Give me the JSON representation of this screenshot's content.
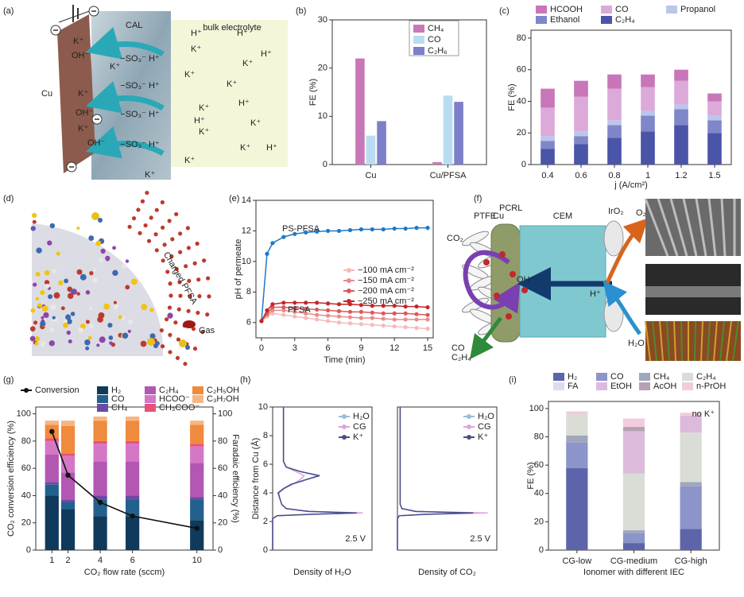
{
  "chart_data": [
    {
      "type": "bar",
      "panel": "(b)",
      "ylabel": "FE (%)",
      "categories": [
        "Cu",
        "Cu/PFSA"
      ],
      "ylim": [
        0,
        30
      ],
      "yticks": [
        0,
        10,
        20,
        30
      ],
      "series": [
        {
          "name": "CH₄",
          "color": "#c878b8",
          "values": [
            22,
            0.5
          ]
        },
        {
          "name": "CO",
          "color": "#b9dcf2",
          "values": [
            6,
            14.3
          ]
        },
        {
          "name": "C₂H₆",
          "color": "#7b80c8",
          "values": [
            9,
            13
          ]
        }
      ]
    },
    {
      "type": "stacked",
      "panel": "(c)",
      "ylabel": "FE (%)",
      "xlabel": "j (A/cm²)",
      "categories": [
        "0.4",
        "0.6",
        "0.8",
        "1",
        "1.2",
        "1.5"
      ],
      "ylim": [
        0,
        85
      ],
      "yticks": [
        0,
        20,
        40,
        60,
        80
      ],
      "series": [
        {
          "name": "C₂H₄",
          "color": "#4a55a8",
          "values": [
            10,
            13,
            17,
            21,
            25,
            20
          ]
        },
        {
          "name": "Ethanol",
          "color": "#7f87c9",
          "values": [
            5,
            5,
            8,
            10,
            10,
            8
          ]
        },
        {
          "name": "Propanol",
          "color": "#bcc6ec",
          "values": [
            3,
            3,
            3,
            3,
            3,
            3
          ]
        },
        {
          "name": "CO",
          "color": "#dcaad8",
          "values": [
            18,
            22,
            20,
            15,
            15,
            9
          ]
        },
        {
          "name": "HCOOH",
          "color": "#c876b9",
          "values": [
            12,
            10,
            9,
            8,
            7,
            5
          ]
        }
      ]
    },
    {
      "type": "line",
      "panel": "(e)",
      "ylabel": "pH of permeate",
      "xlabel": "Time (min)",
      "x": [
        0,
        0.5,
        1,
        2,
        3,
        4,
        5,
        6,
        7,
        8,
        9,
        10,
        11,
        12,
        13,
        14,
        15
      ],
      "xlim": [
        -0.5,
        15.5
      ],
      "xticks": [
        0,
        3,
        6,
        9,
        12,
        15
      ],
      "ylim": [
        5,
        14
      ],
      "yticks": [
        6,
        8,
        10,
        12,
        14
      ],
      "annotations": [
        "PFSA"
      ],
      "series": [
        {
          "name": "PS-PFSA",
          "color": "#1f78c8",
          "values": [
            6.1,
            10.5,
            11.2,
            11.6,
            11.8,
            11.9,
            11.95,
            12.0,
            12.0,
            12.05,
            12.1,
            12.1,
            12.1,
            12.15,
            12.15,
            12.2,
            12.2
          ]
        },
        {
          "name": "−100 mA cm⁻²",
          "color": "#f4baba",
          "values": [
            6.1,
            6.4,
            6.6,
            6.5,
            6.4,
            6.3,
            6.2,
            6.1,
            6.0,
            5.95,
            5.9,
            5.85,
            5.8,
            5.75,
            5.7,
            5.65,
            5.6
          ]
        },
        {
          "name": "−150 mA cm⁻²",
          "color": "#e88c8c",
          "values": [
            6.1,
            6.5,
            6.8,
            6.8,
            6.7,
            6.6,
            6.5,
            6.45,
            6.4,
            6.35,
            6.3,
            6.3,
            6.25,
            6.2,
            6.2,
            6.2,
            6.2
          ]
        },
        {
          "name": "−200 mA cm⁻²",
          "color": "#d85a5a",
          "values": [
            6.1,
            6.6,
            7.0,
            7.0,
            6.95,
            6.9,
            6.85,
            6.8,
            6.75,
            6.7,
            6.7,
            6.65,
            6.6,
            6.6,
            6.6,
            6.55,
            6.5
          ]
        },
        {
          "name": "−250 mA cm⁻²",
          "color": "#c0282c",
          "values": [
            6.1,
            6.8,
            7.2,
            7.3,
            7.3,
            7.3,
            7.3,
            7.25,
            7.2,
            7.2,
            7.15,
            7.1,
            7.1,
            7.1,
            7.05,
            7.05,
            7.0
          ]
        }
      ]
    },
    {
      "type": "barline",
      "panel": "(g)",
      "ylabel": "CO₂ conversion efficiency (%)",
      "y2label": "Faradaic efficiency (%)",
      "xlabel": "CO₂ flow rate (sccm)",
      "x": [
        1,
        2,
        4,
        6,
        10
      ],
      "xlim": [
        0,
        11
      ],
      "xticks": [
        1,
        2,
        4,
        6,
        10
      ],
      "ylim": [
        0,
        105
      ],
      "yticks": [
        0,
        20,
        40,
        60,
        80,
        100
      ],
      "y2lim": [
        0,
        105
      ],
      "y2ticks": [
        0,
        20,
        40,
        60,
        80,
        100
      ],
      "series": [
        {
          "name": "Conversion",
          "color": "#111111",
          "values": [
            87,
            55,
            35,
            25,
            16
          ]
        },
        {
          "name": "H₂",
          "color": "#0f3a5c",
          "axis": "y2",
          "values": [
            40,
            30,
            25,
            25,
            22
          ]
        },
        {
          "name": "CO",
          "color": "#22608e",
          "axis": "y2",
          "values": [
            8,
            5,
            12,
            12,
            15
          ]
        },
        {
          "name": "CH₄",
          "color": "#6a4aa2",
          "axis": "y2",
          "values": [
            2,
            2,
            3,
            3,
            2
          ]
        },
        {
          "name": "C₂H₄",
          "color": "#b257b2",
          "axis": "y2",
          "values": [
            20,
            20,
            25,
            25,
            25
          ]
        },
        {
          "name": "HCOO⁻",
          "color": "#d478c6",
          "axis": "y2",
          "values": [
            10,
            12,
            13,
            13,
            12
          ]
        },
        {
          "name": "CH₃COO⁻",
          "color": "#e8507c",
          "axis": "y2",
          "values": [
            2,
            2,
            2,
            2,
            2
          ]
        },
        {
          "name": "C₂H₅OH",
          "color": "#f08a3c",
          "axis": "y2",
          "values": [
            10,
            20,
            15,
            15,
            14
          ]
        },
        {
          "name": "C₃H₇OH",
          "color": "#f6b684",
          "axis": "y2",
          "values": [
            3,
            4,
            3,
            3,
            3
          ]
        }
      ]
    },
    {
      "type": "profile",
      "panel": "(h)",
      "ylabel": "Distance from Cu (Å)",
      "xlabel": "Density of H₂O",
      "annotations": [
        "2.5 V"
      ],
      "ylim": [
        0,
        10
      ],
      "yticks": [
        0,
        2,
        4,
        6,
        8,
        10
      ],
      "xlim": [
        0,
        1.1
      ],
      "y": [
        0,
        2.2,
        2.4,
        2.5,
        2.6,
        2.7,
        2.9,
        3.2,
        3.6,
        4,
        4.3,
        4.6,
        4.9,
        5.2,
        5.5,
        5.8,
        6.2,
        7,
        8,
        9,
        10
      ],
      "series": [
        {
          "name": "H₂O",
          "color": "#9dbbdc",
          "values": [
            0,
            0,
            0.05,
            0.4,
            0.95,
            0.4,
            0.15,
            0.1,
            0.08,
            0.06,
            0.12,
            0.2,
            0.35,
            0.5,
            0.3,
            0.15,
            0.12,
            0.12,
            0.12,
            0.12,
            0.12
          ]
        },
        {
          "name": "CG",
          "color": "#dca6dc",
          "values": [
            0,
            0,
            0.05,
            0.45,
            1.0,
            0.42,
            0.15,
            0.1,
            0.08,
            0.07,
            0.13,
            0.22,
            0.3,
            0.35,
            0.25,
            0.15,
            0.12,
            0.12,
            0.12,
            0.12,
            0.12
          ]
        },
        {
          "name": "K⁺",
          "color": "#4a4f8c",
          "values": [
            0,
            0,
            0.05,
            0.42,
            0.93,
            0.4,
            0.15,
            0.1,
            0.08,
            0.06,
            0.12,
            0.21,
            0.36,
            0.52,
            0.3,
            0.15,
            0.12,
            0.12,
            0.12,
            0.12,
            0.12
          ]
        }
      ]
    },
    {
      "type": "profile",
      "xlabel": "Density of CO₂",
      "annotations": [
        "2.5 V"
      ],
      "ylim": [
        0,
        10
      ],
      "xlim": [
        0,
        1.1
      ],
      "y": [
        0,
        2.2,
        2.4,
        2.5,
        2.6,
        2.7,
        2.9,
        3.2,
        3.6,
        4,
        4.3,
        4.6,
        4.9,
        5.2,
        5.5,
        5.8,
        6.2,
        7,
        8,
        9,
        10
      ],
      "series": [
        {
          "name": "H₂O",
          "color": "#9dbbdc",
          "values": [
            0,
            0,
            0.02,
            0.3,
            0.85,
            0.2,
            0.05,
            0.03,
            0.03,
            0.03,
            0.03,
            0.03,
            0.03,
            0.03,
            0.03,
            0.03,
            0.03,
            0.03,
            0.03,
            0.03,
            0.03
          ]
        },
        {
          "name": "CG",
          "color": "#dca6dc",
          "values": [
            0,
            0,
            0.02,
            0.35,
            1.0,
            0.22,
            0.05,
            0.03,
            0.03,
            0.03,
            0.03,
            0.03,
            0.03,
            0.03,
            0.03,
            0.03,
            0.03,
            0.03,
            0.03,
            0.03,
            0.03
          ]
        },
        {
          "name": "K⁺",
          "color": "#4a4f8c",
          "values": [
            0,
            0,
            0.02,
            0.3,
            0.84,
            0.2,
            0.05,
            0.03,
            0.03,
            0.03,
            0.03,
            0.03,
            0.03,
            0.03,
            0.03,
            0.03,
            0.03,
            0.03,
            0.03,
            0.03,
            0.03
          ]
        }
      ]
    },
    {
      "type": "stacked",
      "panel": "(i)",
      "ylabel": "FE (%)",
      "xlabel": "Ionomer with different IEC",
      "annotations": [
        "no K⁺"
      ],
      "categories": [
        "CG-low",
        "CG-medium",
        "CG-high"
      ],
      "ylim": [
        0,
        105
      ],
      "yticks": [
        0,
        20,
        40,
        60,
        80,
        100
      ],
      "series": [
        {
          "name": "H₂",
          "color": "#5c65aa",
          "values": [
            58,
            5,
            15
          ]
        },
        {
          "name": "CO",
          "color": "#8c94c9",
          "values": [
            18,
            7,
            30
          ]
        },
        {
          "name": "CH₄",
          "color": "#a0a6bc",
          "values": [
            5,
            2,
            3
          ]
        },
        {
          "name": "C₂H₄",
          "color": "#d9ddd6",
          "values": [
            15,
            40,
            35
          ]
        },
        {
          "name": "FA",
          "color": "#dcdcec",
          "values": [
            0,
            0,
            0
          ]
        },
        {
          "name": "EtOH",
          "color": "#dcbadc",
          "values": [
            0,
            30,
            12
          ]
        },
        {
          "name": "AcOH",
          "color": "#b4a2b4",
          "values": [
            0,
            3,
            0
          ]
        },
        {
          "name": "n-PrOH",
          "color": "#f2ccdc",
          "values": [
            2,
            6,
            2
          ]
        }
      ]
    }
  ],
  "diagrams": {
    "a": {
      "panel": "(a)",
      "labels": [
        "CAL",
        "bulk electrolyte",
        "Cu",
        "K⁺",
        "OH⁻",
        "−SO₃⁻ H⁺",
        "H⁺"
      ]
    },
    "d": {
      "panel": "(d)",
      "labels": [
        "Charged PFSA",
        "Gas"
      ]
    },
    "f": {
      "panel": "(f)",
      "labels": [
        "PTFE",
        "Cu",
        "PCRL",
        "CEM",
        "IrO₂",
        "CO₂",
        "O₂",
        "H₂O",
        "CO",
        "C₂H₄",
        "OH⁻",
        "H⁺"
      ]
    }
  }
}
